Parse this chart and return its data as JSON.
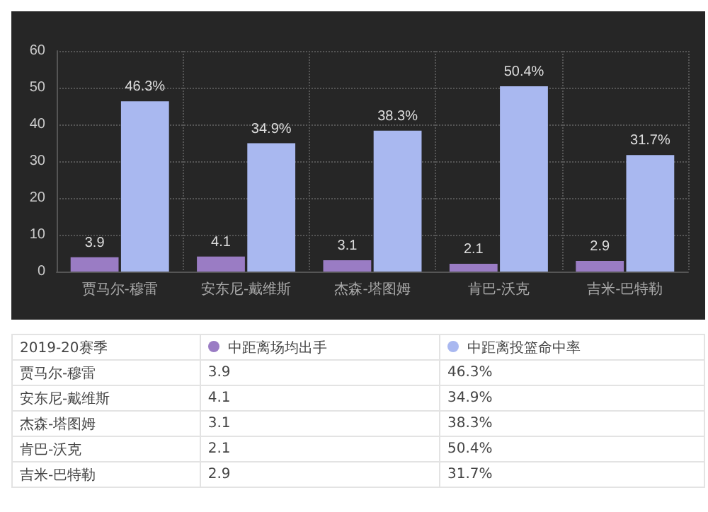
{
  "chart_data": {
    "type": "bar",
    "categories": [
      "贾马尔-穆雷",
      "安东尼-戴维斯",
      "杰森-塔图姆",
      "肯巴-沃克",
      "吉米-巴特勒"
    ],
    "legend_title": "2019-20赛季",
    "series": [
      {
        "name": "中距离场均出手",
        "color": "#9a7cc4",
        "values": [
          3.9,
          4.1,
          3.1,
          2.1,
          2.9
        ],
        "value_labels": [
          "3.9",
          "4.1",
          "3.1",
          "2.1",
          "2.9"
        ]
      },
      {
        "name": "中距离投篮命中率",
        "color": "#a9b8f0",
        "values": [
          46.3,
          34.9,
          38.3,
          50.4,
          31.7
        ],
        "value_labels": [
          "46.3%",
          "34.9%",
          "38.3%",
          "50.4%",
          "31.7%"
        ]
      }
    ],
    "ylim": [
      0,
      60
    ],
    "yticks": [
      0,
      10,
      20,
      30,
      40,
      50,
      60
    ],
    "grid": true,
    "legend": "bottom"
  }
}
